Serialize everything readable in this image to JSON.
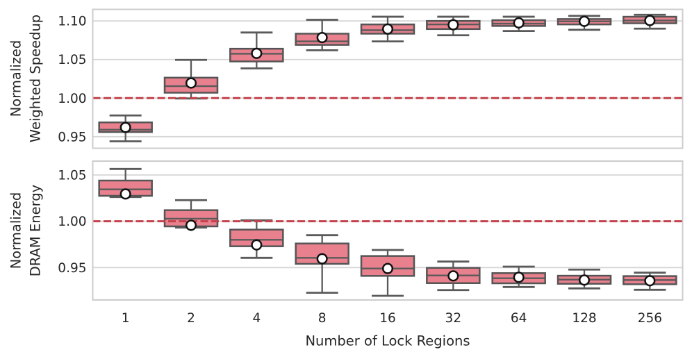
{
  "figure": {
    "xlabel": "Number of Lock Regions",
    "categories": [
      "1",
      "2",
      "4",
      "8",
      "16",
      "32",
      "64",
      "128",
      "256"
    ],
    "colors": {
      "box_fill": "#e8808e",
      "box_edge": "#555555",
      "whisker": "#5a5a5a",
      "median": "#5a5a5a",
      "mean_fill": "#ffffff",
      "mean_edge": "#111111",
      "refline": "#c4424c",
      "grid": "#d6d6d6",
      "border": "#cccccc",
      "text": "#262626"
    }
  },
  "chart_data": [
    {
      "type": "box",
      "panel": "top",
      "ylabel": "Normalized Weighted Speedup",
      "ylabel_lines": [
        "Normalized",
        "Weighted Speedup"
      ],
      "categories": [
        "1",
        "2",
        "4",
        "8",
        "16",
        "32",
        "64",
        "128",
        "256"
      ],
      "yticks": [
        0.95,
        1.0,
        1.05,
        1.1
      ],
      "ylim": [
        0.935,
        1.115
      ],
      "refline": 1.0,
      "grid": true,
      "legend": "none",
      "show_xticklabels": false,
      "series": [
        {
          "category": "1",
          "whislo": 0.944,
          "q1": 0.956,
          "med": 0.959,
          "q3": 0.9685,
          "whishi": 0.9775,
          "mean": 0.962
        },
        {
          "category": "2",
          "whislo": 0.9995,
          "q1": 1.007,
          "med": 1.0155,
          "q3": 1.0265,
          "whishi": 1.0495,
          "mean": 1.0195
        },
        {
          "category": "4",
          "whislo": 1.0385,
          "q1": 1.0475,
          "med": 1.0575,
          "q3": 1.064,
          "whishi": 1.085,
          "mean": 1.058
        },
        {
          "category": "8",
          "whislo": 1.062,
          "q1": 1.069,
          "med": 1.0735,
          "q3": 1.0835,
          "whishi": 1.1015,
          "mean": 1.0785
        },
        {
          "category": "16",
          "whislo": 1.0735,
          "q1": 1.0835,
          "med": 1.088,
          "q3": 1.0955,
          "whishi": 1.1055,
          "mean": 1.0895
        },
        {
          "category": "32",
          "whislo": 1.0815,
          "q1": 1.0895,
          "med": 1.0955,
          "q3": 1.1,
          "whishi": 1.1055,
          "mean": 1.095
        },
        {
          "category": "64",
          "whislo": 1.087,
          "q1": 1.0935,
          "med": 1.0965,
          "q3": 1.101,
          "whishi": 1.1055,
          "mean": 1.0975
        },
        {
          "category": "128",
          "whislo": 1.0885,
          "q1": 1.0955,
          "med": 1.0995,
          "q3": 1.1025,
          "whishi": 1.1065,
          "mean": 1.0995
        },
        {
          "category": "256",
          "whislo": 1.09,
          "q1": 1.097,
          "med": 1.1005,
          "q3": 1.1055,
          "whishi": 1.108,
          "mean": 1.1005
        }
      ]
    },
    {
      "type": "box",
      "panel": "bottom",
      "ylabel": "Normalized DRAM Energy",
      "ylabel_lines": [
        "Normalized",
        "DRAM Energy"
      ],
      "xlabel": "Number of Lock Regions",
      "categories": [
        "1",
        "2",
        "4",
        "8",
        "16",
        "32",
        "64",
        "128",
        "256"
      ],
      "yticks": [
        0.95,
        1.0,
        1.05
      ],
      "ylim": [
        0.915,
        1.065
      ],
      "refline": 1.0,
      "grid": true,
      "legend": "none",
      "show_xticklabels": true,
      "series": [
        {
          "category": "1",
          "whislo": 1.0262,
          "q1": 1.0275,
          "med": 1.0345,
          "q3": 1.044,
          "whishi": 1.0565,
          "mean": 1.0295
        },
        {
          "category": "2",
          "whislo": 0.9932,
          "q1": 0.9945,
          "med": 1.0028,
          "q3": 1.012,
          "whishi": 1.0228,
          "mean": 0.9957
        },
        {
          "category": "4",
          "whislo": 0.9605,
          "q1": 0.973,
          "med": 0.98,
          "q3": 0.991,
          "whishi": 1.001,
          "mean": 0.9745
        },
        {
          "category": "8",
          "whislo": 0.9228,
          "q1": 0.954,
          "med": 0.9605,
          "q3": 0.976,
          "whishi": 0.985,
          "mean": 0.9595
        },
        {
          "category": "16",
          "whislo": 0.9195,
          "q1": 0.941,
          "med": 0.949,
          "q3": 0.9625,
          "whishi": 0.969,
          "mean": 0.949
        },
        {
          "category": "32",
          "whislo": 0.9257,
          "q1": 0.9332,
          "med": 0.9415,
          "q3": 0.9497,
          "whishi": 0.9565,
          "mean": 0.941
        },
        {
          "category": "64",
          "whislo": 0.929,
          "q1": 0.933,
          "med": 0.9385,
          "q3": 0.944,
          "whishi": 0.951,
          "mean": 0.9395
        },
        {
          "category": "128",
          "whislo": 0.9275,
          "q1": 0.9325,
          "med": 0.937,
          "q3": 0.9412,
          "whishi": 0.9478,
          "mean": 0.9365
        },
        {
          "category": "256",
          "whislo": 0.926,
          "q1": 0.932,
          "med": 0.9365,
          "q3": 0.9408,
          "whishi": 0.9445,
          "mean": 0.9358
        }
      ]
    }
  ]
}
